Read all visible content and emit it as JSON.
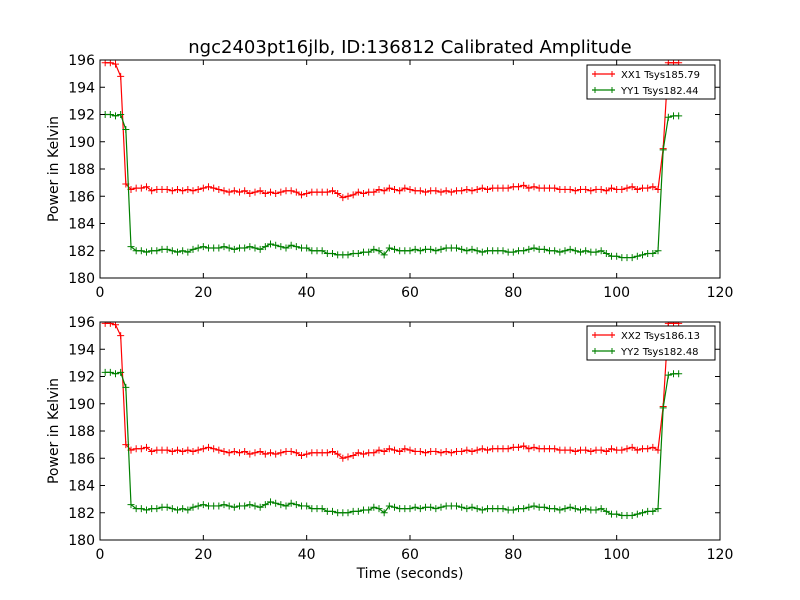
{
  "figure_title": "ngc2403pt16jlb, ID:136812 Calibrated Amplitude",
  "xlabel": "Time (seconds)",
  "chart_data": [
    {
      "type": "line",
      "title": "ngc2403pt16jlb, ID:136812 Calibrated Amplitude",
      "xlabel": "",
      "ylabel": "Power in Kelvin",
      "xlim": [
        0,
        120
      ],
      "ylim": [
        180,
        196
      ],
      "xticks": [
        "0",
        "20",
        "40",
        "60",
        "80",
        "100",
        "120"
      ],
      "yticks": [
        "180",
        "182",
        "184",
        "186",
        "188",
        "190",
        "192",
        "194",
        "196"
      ],
      "grid": false,
      "legend_position": "top-right",
      "x": [
        1,
        2,
        3,
        4,
        5,
        6,
        7,
        8,
        9,
        10,
        11,
        12,
        13,
        14,
        15,
        16,
        17,
        18,
        19,
        20,
        21,
        22,
        23,
        24,
        25,
        26,
        27,
        28,
        29,
        30,
        31,
        32,
        33,
        34,
        35,
        36,
        37,
        38,
        39,
        40,
        41,
        42,
        43,
        44,
        45,
        46,
        47,
        48,
        49,
        50,
        51,
        52,
        53,
        54,
        55,
        56,
        57,
        58,
        59,
        60,
        61,
        62,
        63,
        64,
        65,
        66,
        67,
        68,
        69,
        70,
        71,
        72,
        73,
        74,
        75,
        76,
        77,
        78,
        79,
        80,
        81,
        82,
        83,
        84,
        85,
        86,
        87,
        88,
        89,
        90,
        91,
        92,
        93,
        94,
        95,
        96,
        97,
        98,
        99,
        100,
        101,
        102,
        103,
        104,
        105,
        106,
        107,
        108,
        109,
        110,
        111,
        112
      ],
      "series": [
        {
          "name": "XX1 Tsys185.79",
          "color": "#ff0000",
          "values": [
            195.8,
            195.8,
            195.7,
            194.8,
            186.9,
            186.5,
            186.6,
            186.6,
            186.7,
            186.4,
            186.5,
            186.5,
            186.5,
            186.4,
            186.5,
            186.4,
            186.5,
            186.4,
            186.5,
            186.6,
            186.7,
            186.6,
            186.5,
            186.4,
            186.3,
            186.4,
            186.3,
            186.4,
            186.2,
            186.3,
            186.4,
            186.2,
            186.3,
            186.2,
            186.3,
            186.4,
            186.4,
            186.3,
            186.1,
            186.2,
            186.3,
            186.3,
            186.3,
            186.3,
            186.4,
            186.2,
            185.9,
            186.0,
            186.1,
            186.3,
            186.2,
            186.3,
            186.3,
            186.5,
            186.4,
            186.6,
            186.5,
            186.4,
            186.6,
            186.5,
            186.4,
            186.4,
            186.3,
            186.4,
            186.4,
            186.3,
            186.4,
            186.3,
            186.4,
            186.4,
            186.5,
            186.4,
            186.5,
            186.6,
            186.5,
            186.6,
            186.6,
            186.6,
            186.6,
            186.7,
            186.7,
            186.8,
            186.6,
            186.7,
            186.6,
            186.6,
            186.6,
            186.6,
            186.5,
            186.5,
            186.5,
            186.4,
            186.5,
            186.5,
            186.4,
            186.5,
            186.5,
            186.4,
            186.6,
            186.5,
            186.5,
            186.6,
            186.7,
            186.5,
            186.6,
            186.6,
            186.7,
            186.5,
            189.5,
            195.8,
            195.8,
            195.8
          ]
        },
        {
          "name": "YY1 Tsys182.44",
          "color": "#008000",
          "values": [
            192.0,
            192.0,
            191.9,
            192.0,
            190.9,
            182.3,
            182.0,
            182.0,
            181.9,
            182.0,
            182.0,
            182.1,
            182.1,
            182.0,
            181.9,
            182.0,
            181.9,
            182.1,
            182.2,
            182.3,
            182.2,
            182.2,
            182.2,
            182.3,
            182.2,
            182.1,
            182.2,
            182.2,
            182.3,
            182.2,
            182.1,
            182.3,
            182.5,
            182.4,
            182.3,
            182.2,
            182.4,
            182.3,
            182.2,
            182.2,
            182.0,
            182.0,
            182.0,
            181.8,
            181.8,
            181.7,
            181.7,
            181.7,
            181.8,
            181.8,
            181.9,
            181.9,
            182.1,
            182.0,
            181.7,
            182.2,
            182.1,
            182.0,
            182.0,
            182.0,
            182.1,
            182.0,
            182.1,
            182.1,
            182.0,
            182.1,
            182.2,
            182.2,
            182.2,
            182.1,
            182.0,
            182.1,
            182.0,
            181.9,
            182.0,
            182.0,
            182.0,
            182.0,
            181.9,
            181.9,
            182.0,
            182.0,
            182.1,
            182.2,
            182.1,
            182.1,
            182.0,
            182.0,
            181.9,
            182.0,
            182.1,
            182.0,
            181.9,
            182.0,
            181.9,
            181.9,
            182.0,
            181.8,
            181.6,
            181.6,
            181.5,
            181.5,
            181.5,
            181.6,
            181.7,
            181.8,
            181.8,
            182.0,
            189.4,
            191.8,
            191.9,
            191.9
          ]
        }
      ]
    },
    {
      "type": "line",
      "title": "",
      "xlabel": "Time (seconds)",
      "ylabel": "Power in Kelvin",
      "xlim": [
        0,
        120
      ],
      "ylim": [
        180,
        196
      ],
      "xticks": [
        "0",
        "20",
        "40",
        "60",
        "80",
        "100",
        "120"
      ],
      "yticks": [
        "180",
        "182",
        "184",
        "186",
        "188",
        "190",
        "192",
        "194",
        "196"
      ],
      "grid": false,
      "legend_position": "top-right",
      "x": [
        1,
        2,
        3,
        4,
        5,
        6,
        7,
        8,
        9,
        10,
        11,
        12,
        13,
        14,
        15,
        16,
        17,
        18,
        19,
        20,
        21,
        22,
        23,
        24,
        25,
        26,
        27,
        28,
        29,
        30,
        31,
        32,
        33,
        34,
        35,
        36,
        37,
        38,
        39,
        40,
        41,
        42,
        43,
        44,
        45,
        46,
        47,
        48,
        49,
        50,
        51,
        52,
        53,
        54,
        55,
        56,
        57,
        58,
        59,
        60,
        61,
        62,
        63,
        64,
        65,
        66,
        67,
        68,
        69,
        70,
        71,
        72,
        73,
        74,
        75,
        76,
        77,
        78,
        79,
        80,
        81,
        82,
        83,
        84,
        85,
        86,
        87,
        88,
        89,
        90,
        91,
        92,
        93,
        94,
        95,
        96,
        97,
        98,
        99,
        100,
        101,
        102,
        103,
        104,
        105,
        106,
        107,
        108,
        109,
        110,
        111,
        112
      ],
      "series": [
        {
          "name": "XX2 Tsys186.13",
          "color": "#ff0000",
          "values": [
            195.9,
            195.9,
            195.8,
            195.0,
            187.0,
            186.6,
            186.7,
            186.7,
            186.8,
            186.5,
            186.6,
            186.6,
            186.6,
            186.5,
            186.6,
            186.5,
            186.6,
            186.5,
            186.6,
            186.7,
            186.8,
            186.7,
            186.6,
            186.5,
            186.4,
            186.5,
            186.4,
            186.5,
            186.3,
            186.4,
            186.5,
            186.3,
            186.4,
            186.3,
            186.4,
            186.5,
            186.5,
            186.4,
            186.2,
            186.3,
            186.4,
            186.4,
            186.4,
            186.4,
            186.5,
            186.3,
            186.0,
            186.1,
            186.2,
            186.4,
            186.3,
            186.4,
            186.4,
            186.6,
            186.5,
            186.7,
            186.6,
            186.5,
            186.7,
            186.6,
            186.5,
            186.5,
            186.4,
            186.5,
            186.5,
            186.4,
            186.5,
            186.4,
            186.5,
            186.5,
            186.6,
            186.5,
            186.6,
            186.7,
            186.6,
            186.7,
            186.7,
            186.7,
            186.7,
            186.8,
            186.8,
            186.9,
            186.7,
            186.8,
            186.7,
            186.7,
            186.7,
            186.7,
            186.6,
            186.6,
            186.6,
            186.5,
            186.6,
            186.6,
            186.5,
            186.6,
            186.6,
            186.5,
            186.7,
            186.6,
            186.6,
            186.7,
            186.8,
            186.6,
            186.7,
            186.7,
            186.8,
            186.6,
            189.8,
            195.9,
            195.9,
            195.9
          ]
        },
        {
          "name": "YY2 Tsys182.48",
          "color": "#008000",
          "values": [
            192.3,
            192.3,
            192.2,
            192.3,
            191.2,
            182.6,
            182.3,
            182.3,
            182.2,
            182.3,
            182.3,
            182.4,
            182.4,
            182.3,
            182.2,
            182.3,
            182.2,
            182.4,
            182.5,
            182.6,
            182.5,
            182.5,
            182.5,
            182.6,
            182.5,
            182.4,
            182.5,
            182.5,
            182.6,
            182.5,
            182.4,
            182.6,
            182.8,
            182.7,
            182.6,
            182.5,
            182.7,
            182.6,
            182.5,
            182.5,
            182.3,
            182.3,
            182.3,
            182.1,
            182.1,
            182.0,
            182.0,
            182.0,
            182.1,
            182.1,
            182.2,
            182.2,
            182.4,
            182.3,
            182.0,
            182.5,
            182.4,
            182.3,
            182.3,
            182.3,
            182.4,
            182.3,
            182.4,
            182.4,
            182.3,
            182.4,
            182.5,
            182.5,
            182.5,
            182.4,
            182.3,
            182.4,
            182.3,
            182.2,
            182.3,
            182.3,
            182.3,
            182.3,
            182.2,
            182.2,
            182.3,
            182.3,
            182.4,
            182.5,
            182.4,
            182.4,
            182.3,
            182.3,
            182.2,
            182.3,
            182.4,
            182.3,
            182.2,
            182.3,
            182.2,
            182.2,
            182.3,
            182.1,
            181.9,
            181.9,
            181.8,
            181.8,
            181.8,
            181.9,
            182.0,
            182.1,
            182.1,
            182.3,
            189.7,
            192.1,
            192.2,
            192.2
          ]
        }
      ]
    }
  ]
}
